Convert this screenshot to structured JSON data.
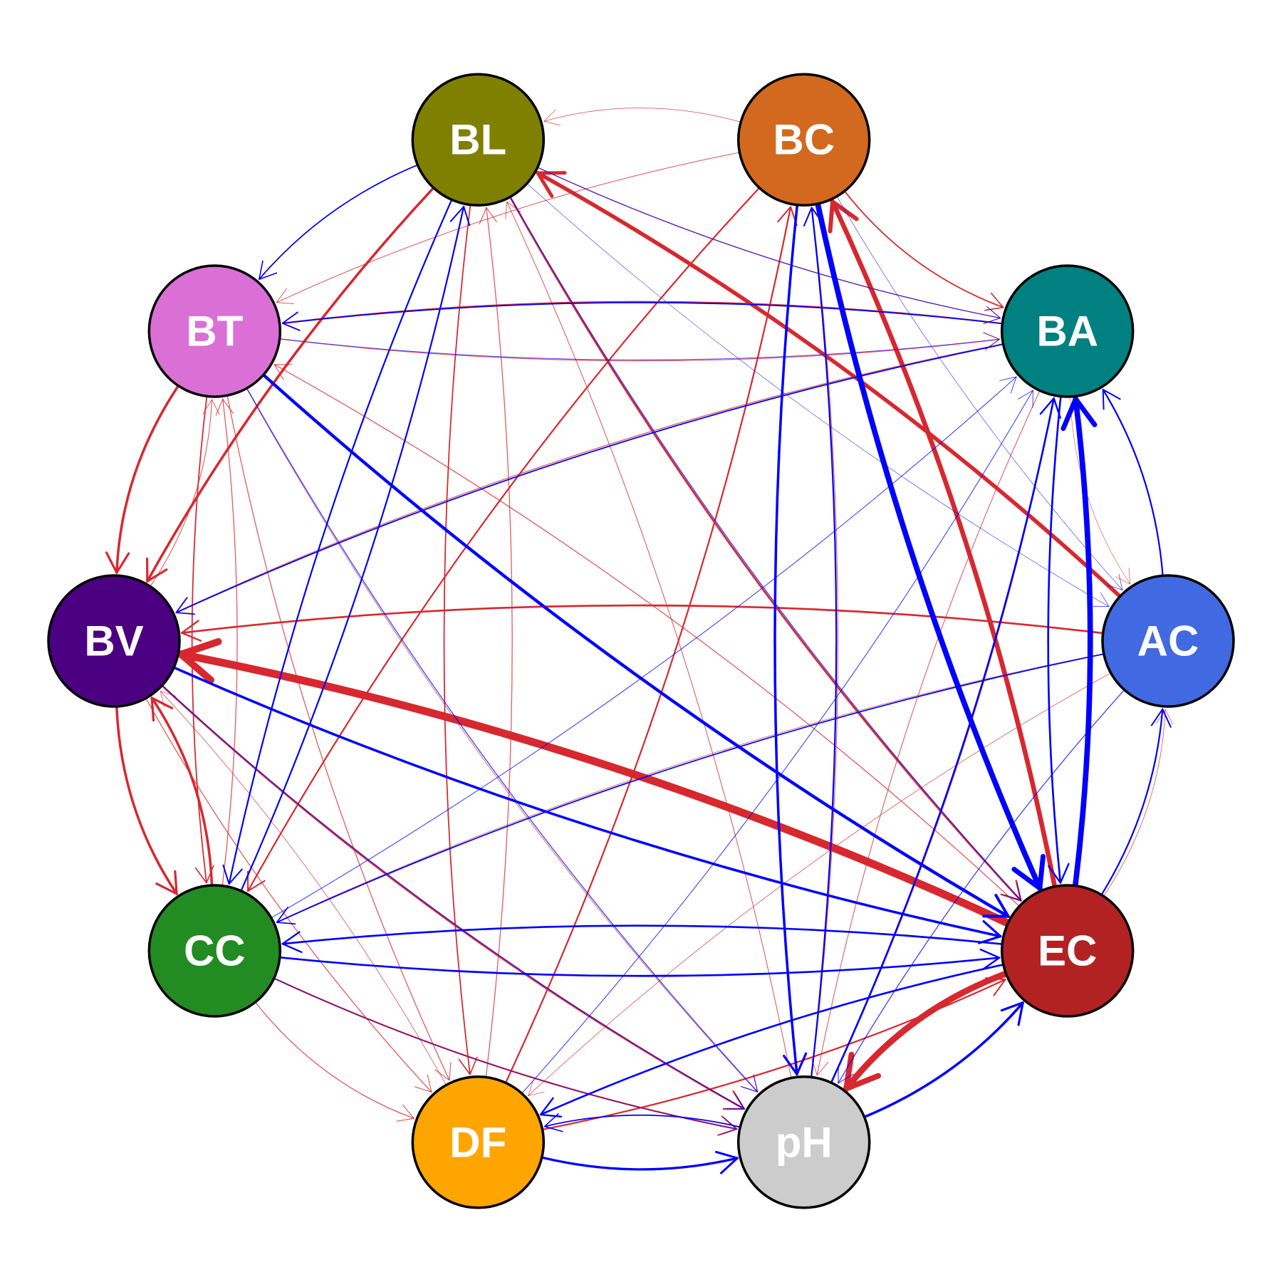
{
  "diagram": {
    "type": "directed-network",
    "colors": {
      "positive": "#d7282f",
      "negative": "#0000ff",
      "node_border": "#000000",
      "label": "#ffffff"
    },
    "nodes": [
      {
        "id": "BL",
        "label": "BL",
        "color": "#808000"
      },
      {
        "id": "BC",
        "label": "BC",
        "color": "#d2691e"
      },
      {
        "id": "BA",
        "label": "BA",
        "color": "#008080"
      },
      {
        "id": "AC",
        "label": "AC",
        "color": "#4169e1"
      },
      {
        "id": "EC",
        "label": "EC",
        "color": "#b22222"
      },
      {
        "id": "pH",
        "label": "pH",
        "color": "#cccccc"
      },
      {
        "id": "DF",
        "label": "DF",
        "color": "#ffa500"
      },
      {
        "id": "CC",
        "label": "CC",
        "color": "#228b22"
      },
      {
        "id": "BV",
        "label": "BV",
        "color": "#4b0082"
      },
      {
        "id": "BT",
        "label": "BT",
        "color": "#da70d6"
      }
    ],
    "edges": [
      {
        "from": "EC",
        "to": "BV",
        "sign": "positive",
        "weight": 5
      },
      {
        "from": "EC",
        "to": "pH",
        "sign": "positive",
        "weight": 4
      },
      {
        "from": "EC",
        "to": "BC",
        "sign": "positive",
        "weight": 3
      },
      {
        "from": "AC",
        "to": "BL",
        "sign": "positive",
        "weight": 2.5
      },
      {
        "from": "BT",
        "to": "BV",
        "sign": "positive",
        "weight": 1.6
      },
      {
        "from": "BL",
        "to": "BV",
        "sign": "positive",
        "weight": 1.6
      },
      {
        "from": "BV",
        "to": "CC",
        "sign": "positive",
        "weight": 1.6
      },
      {
        "from": "CC",
        "to": "BV",
        "sign": "positive",
        "weight": 1.6
      },
      {
        "from": "AC",
        "to": "BV",
        "sign": "positive",
        "weight": 1.2
      },
      {
        "from": "BL",
        "to": "EC",
        "sign": "positive",
        "weight": 1.2
      },
      {
        "from": "BV",
        "to": "pH",
        "sign": "positive",
        "weight": 1.2
      },
      {
        "from": "CC",
        "to": "pH",
        "sign": "positive",
        "weight": 1
      },
      {
        "from": "BL",
        "to": "DF",
        "sign": "positive",
        "weight": 0.8
      },
      {
        "from": "DF",
        "to": "BL",
        "sign": "positive",
        "weight": 0.6
      },
      {
        "from": "BC",
        "to": "CC",
        "sign": "positive",
        "weight": 1
      },
      {
        "from": "DF",
        "to": "BC",
        "sign": "positive",
        "weight": 1
      },
      {
        "from": "DF",
        "to": "EC",
        "sign": "positive",
        "weight": 1
      },
      {
        "from": "EC",
        "to": "BT",
        "sign": "positive",
        "weight": 0.6
      },
      {
        "from": "BA",
        "to": "BT",
        "sign": "positive",
        "weight": 0.8
      },
      {
        "from": "BT",
        "to": "BA",
        "sign": "positive",
        "weight": 0.6
      },
      {
        "from": "BL",
        "to": "BA",
        "sign": "positive",
        "weight": 0.6
      },
      {
        "from": "BC",
        "to": "BA",
        "sign": "positive",
        "weight": 0.8
      },
      {
        "from": "BC",
        "to": "BT",
        "sign": "positive",
        "weight": 0.5
      },
      {
        "from": "BC",
        "to": "BL",
        "sign": "positive",
        "weight": 0.4
      },
      {
        "from": "BA",
        "to": "BV",
        "sign": "positive",
        "weight": 0.6
      },
      {
        "from": "BA",
        "to": "pH",
        "sign": "positive",
        "weight": 0.5
      },
      {
        "from": "BT",
        "to": "DF",
        "sign": "positive",
        "weight": 0.6
      },
      {
        "from": "BV",
        "to": "DF",
        "sign": "positive",
        "weight": 0.6
      },
      {
        "from": "CC",
        "to": "DF",
        "sign": "positive",
        "weight": 0.6
      },
      {
        "from": "AC",
        "to": "CC",
        "sign": "positive",
        "weight": 0.4
      },
      {
        "from": "AC",
        "to": "DF",
        "sign": "positive",
        "weight": 0.4
      },
      {
        "from": "pH",
        "to": "BL",
        "sign": "positive",
        "weight": 0.5
      },
      {
        "from": "pH",
        "to": "BC",
        "sign": "positive",
        "weight": 0.5
      },
      {
        "from": "pH",
        "to": "BA",
        "sign": "positive",
        "weight": 0.5
      },
      {
        "from": "BT",
        "to": "CC",
        "sign": "positive",
        "weight": 0.8
      },
      {
        "from": "CC",
        "to": "BT",
        "sign": "positive",
        "weight": 0.6
      },
      {
        "from": "BV",
        "to": "BT",
        "sign": "positive",
        "weight": 0.5
      },
      {
        "from": "BT",
        "to": "pH",
        "sign": "positive",
        "weight": 0.4
      },
      {
        "from": "DF",
        "to": "BV",
        "sign": "positive",
        "weight": 0.4
      },
      {
        "from": "EC",
        "to": "BA",
        "sign": "positive",
        "weight": 0.4
      },
      {
        "from": "EC",
        "to": "AC",
        "sign": "positive",
        "weight": 0.4
      },
      {
        "from": "BA",
        "to": "AC",
        "sign": "positive",
        "weight": 0.3
      },
      {
        "from": "BC",
        "to": "EC",
        "sign": "negative",
        "weight": 3.5
      },
      {
        "from": "EC",
        "to": "BA",
        "sign": "negative",
        "weight": 3.5
      },
      {
        "from": "BT",
        "to": "EC",
        "sign": "negative",
        "weight": 2
      },
      {
        "from": "BV",
        "to": "EC",
        "sign": "negative",
        "weight": 1.6
      },
      {
        "from": "pH",
        "to": "EC",
        "sign": "negative",
        "weight": 1.6
      },
      {
        "from": "BC",
        "to": "pH",
        "sign": "negative",
        "weight": 1.6
      },
      {
        "from": "pH",
        "to": "BC",
        "sign": "negative",
        "weight": 1
      },
      {
        "from": "DF",
        "to": "pH",
        "sign": "negative",
        "weight": 1.5
      },
      {
        "from": "pH",
        "to": "DF",
        "sign": "negative",
        "weight": 0.8
      },
      {
        "from": "EC",
        "to": "CC",
        "sign": "negative",
        "weight": 1.2
      },
      {
        "from": "CC",
        "to": "EC",
        "sign": "negative",
        "weight": 1.2
      },
      {
        "from": "EC",
        "to": "DF",
        "sign": "negative",
        "weight": 1.2
      },
      {
        "from": "pH",
        "to": "BA",
        "sign": "negative",
        "weight": 1.2
      },
      {
        "from": "BA",
        "to": "EC",
        "sign": "negative",
        "weight": 1.2
      },
      {
        "from": "AC",
        "to": "BA",
        "sign": "negative",
        "weight": 1
      },
      {
        "from": "EC",
        "to": "AC",
        "sign": "negative",
        "weight": 1
      },
      {
        "from": "BL",
        "to": "CC",
        "sign": "negative",
        "weight": 1
      },
      {
        "from": "CC",
        "to": "BL",
        "sign": "negative",
        "weight": 1
      },
      {
        "from": "BL",
        "to": "BT",
        "sign": "negative",
        "weight": 0.8
      },
      {
        "from": "BA",
        "to": "BV",
        "sign": "negative",
        "weight": 0.8
      },
      {
        "from": "AC",
        "to": "CC",
        "sign": "negative",
        "weight": 0.8
      },
      {
        "from": "BT",
        "to": "pH",
        "sign": "negative",
        "weight": 0.6
      },
      {
        "from": "BV",
        "to": "pH",
        "sign": "negative",
        "weight": 0.6
      },
      {
        "from": "CC",
        "to": "pH",
        "sign": "negative",
        "weight": 0.4
      },
      {
        "from": "BL",
        "to": "BA",
        "sign": "negative",
        "weight": 0.5
      },
      {
        "from": "BL",
        "to": "EC",
        "sign": "negative",
        "weight": 0.6
      },
      {
        "from": "BA",
        "to": "BT",
        "sign": "negative",
        "weight": 0.8
      },
      {
        "from": "CC",
        "to": "BA",
        "sign": "negative",
        "weight": 0.5
      },
      {
        "from": "DF",
        "to": "BA",
        "sign": "negative",
        "weight": 0.5
      },
      {
        "from": "BT",
        "to": "BA",
        "sign": "negative",
        "weight": 0.4
      },
      {
        "from": "AC",
        "to": "pH",
        "sign": "negative",
        "weight": 0.6
      },
      {
        "from": "BC",
        "to": "AC",
        "sign": "negative",
        "weight": 0.3
      },
      {
        "from": "BL",
        "to": "AC",
        "sign": "negative",
        "weight": 0.3
      }
    ]
  }
}
